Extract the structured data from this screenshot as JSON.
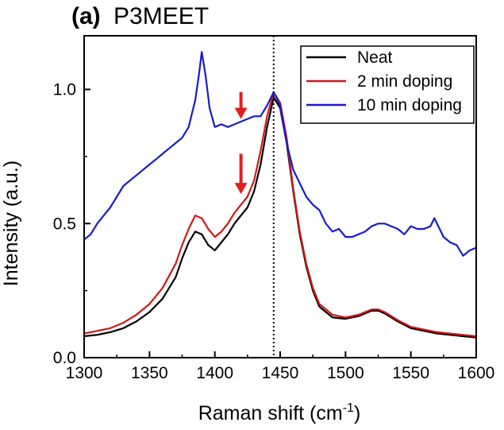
{
  "chart_data": {
    "type": "line",
    "title_prefix": "(a)",
    "title": "P3MEET",
    "xlabel": "Raman shift (cm",
    "xlabel_sup": "-1",
    "xlabel_suffix": ")",
    "ylabel": "Intensity (a.u.)",
    "xlim": [
      1300,
      1600
    ],
    "ylim": [
      0,
      1.2
    ],
    "xticks": [
      1300,
      1350,
      1400,
      1450,
      1500,
      1550,
      1600
    ],
    "xtick_labels": [
      "1300",
      "1350",
      "1400",
      "1450",
      "1500",
      "1550",
      "1600"
    ],
    "yticks": [
      0.0,
      0.5,
      1.0
    ],
    "ytick_labels": [
      "0.0",
      "0.5",
      "1.0"
    ],
    "legend_position": "top-right",
    "reference_line_x": 1445,
    "arrows": [
      {
        "x": 1420,
        "y_from": 0.99,
        "y_to": 0.89,
        "color": "#e02020"
      },
      {
        "x": 1420,
        "y_from": 0.76,
        "y_to": 0.61,
        "color": "#e02020"
      }
    ],
    "series": [
      {
        "name": "Neat",
        "color": "#000000",
        "x": [
          1300,
          1310,
          1320,
          1330,
          1340,
          1350,
          1360,
          1370,
          1375,
          1380,
          1385,
          1390,
          1395,
          1400,
          1405,
          1410,
          1415,
          1420,
          1425,
          1430,
          1435,
          1440,
          1445,
          1450,
          1455,
          1460,
          1465,
          1470,
          1475,
          1480,
          1490,
          1500,
          1510,
          1520,
          1525,
          1530,
          1540,
          1550,
          1560,
          1570,
          1580,
          1590,
          1600
        ],
        "values": [
          0.08,
          0.085,
          0.095,
          0.11,
          0.135,
          0.17,
          0.22,
          0.3,
          0.37,
          0.43,
          0.47,
          0.46,
          0.42,
          0.4,
          0.43,
          0.46,
          0.5,
          0.53,
          0.56,
          0.62,
          0.72,
          0.86,
          0.97,
          0.93,
          0.8,
          0.62,
          0.46,
          0.34,
          0.25,
          0.19,
          0.15,
          0.145,
          0.155,
          0.175,
          0.175,
          0.165,
          0.135,
          0.11,
          0.1,
          0.09,
          0.085,
          0.08,
          0.075
        ]
      },
      {
        "name": "2 min doping",
        "color": "#d01818",
        "x": [
          1300,
          1310,
          1320,
          1330,
          1340,
          1350,
          1360,
          1370,
          1375,
          1380,
          1385,
          1390,
          1395,
          1400,
          1405,
          1410,
          1415,
          1420,
          1425,
          1430,
          1435,
          1440,
          1445,
          1450,
          1455,
          1460,
          1465,
          1470,
          1475,
          1480,
          1490,
          1500,
          1510,
          1520,
          1525,
          1530,
          1540,
          1550,
          1560,
          1570,
          1580,
          1590,
          1600
        ],
        "values": [
          0.09,
          0.1,
          0.11,
          0.13,
          0.16,
          0.2,
          0.26,
          0.35,
          0.42,
          0.48,
          0.53,
          0.52,
          0.48,
          0.45,
          0.47,
          0.5,
          0.54,
          0.57,
          0.6,
          0.66,
          0.77,
          0.9,
          0.99,
          0.95,
          0.82,
          0.63,
          0.47,
          0.35,
          0.26,
          0.2,
          0.16,
          0.15,
          0.16,
          0.18,
          0.18,
          0.17,
          0.14,
          0.115,
          0.105,
          0.095,
          0.09,
          0.085,
          0.08
        ]
      },
      {
        "name": "10 min doping",
        "color": "#1a1ad0",
        "x": [
          1300,
          1305,
          1310,
          1315,
          1320,
          1325,
          1330,
          1335,
          1340,
          1345,
          1350,
          1355,
          1360,
          1365,
          1370,
          1375,
          1380,
          1385,
          1388,
          1390,
          1393,
          1396,
          1400,
          1405,
          1410,
          1415,
          1420,
          1425,
          1430,
          1435,
          1440,
          1445,
          1450,
          1455,
          1460,
          1465,
          1470,
          1475,
          1480,
          1485,
          1490,
          1495,
          1500,
          1505,
          1510,
          1515,
          1520,
          1525,
          1530,
          1535,
          1540,
          1545,
          1550,
          1555,
          1560,
          1565,
          1568,
          1572,
          1575,
          1580,
          1585,
          1590,
          1595,
          1600
        ],
        "values": [
          0.44,
          0.46,
          0.5,
          0.53,
          0.56,
          0.6,
          0.64,
          0.66,
          0.68,
          0.7,
          0.72,
          0.74,
          0.76,
          0.78,
          0.8,
          0.82,
          0.86,
          0.96,
          1.06,
          1.14,
          1.05,
          0.93,
          0.86,
          0.87,
          0.86,
          0.87,
          0.88,
          0.89,
          0.9,
          0.9,
          0.94,
          0.99,
          0.94,
          0.8,
          0.7,
          0.65,
          0.6,
          0.57,
          0.55,
          0.5,
          0.47,
          0.48,
          0.45,
          0.45,
          0.46,
          0.47,
          0.49,
          0.5,
          0.5,
          0.49,
          0.48,
          0.46,
          0.49,
          0.48,
          0.48,
          0.49,
          0.52,
          0.48,
          0.45,
          0.43,
          0.42,
          0.38,
          0.4,
          0.41
        ]
      }
    ]
  }
}
